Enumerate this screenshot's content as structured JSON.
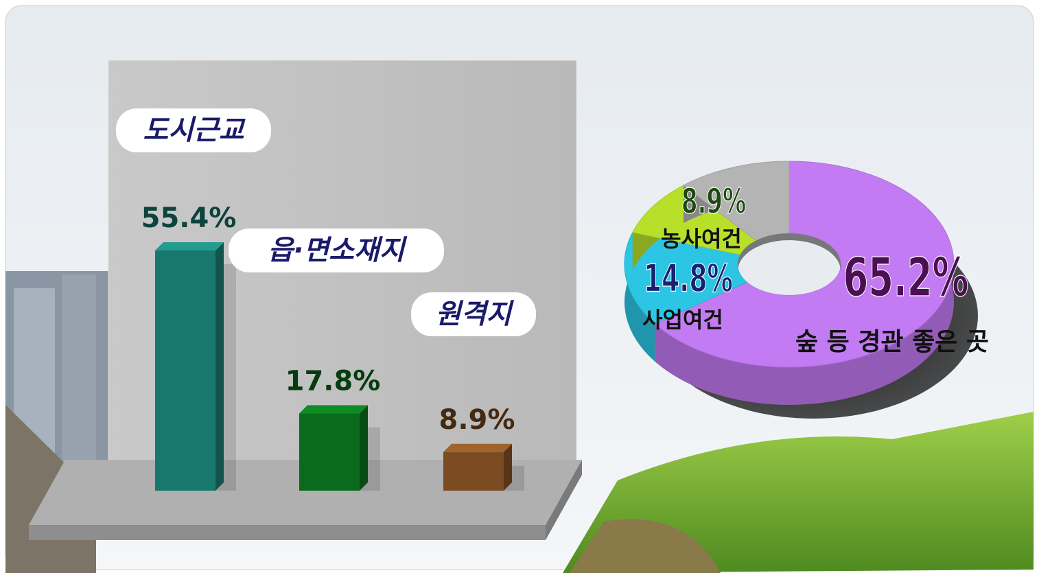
{
  "chart_data": [
    {
      "type": "bar",
      "categories": [
        "도시근교",
        "읍·면소재지",
        "원격지"
      ],
      "values": [
        55.4,
        17.8,
        8.9
      ],
      "value_labels": [
        "55.4%",
        "17.8%",
        "8.9%"
      ],
      "colors": [
        "#19786e",
        "#0b6b1c",
        "#7b4c22"
      ]
    },
    {
      "type": "donut",
      "categories": [
        "숲 등 경관 좋은 곳",
        "사업여건",
        "농사여건",
        null
      ],
      "values": [
        65.2,
        14.8,
        8.9,
        11.1
      ],
      "value_labels": [
        "65.2%",
        "14.8%",
        "8.9%",
        null
      ],
      "colors": [
        "#c27bf2",
        "#2cc6e4",
        "#b8e02a",
        "#b4b4b4"
      ]
    }
  ]
}
